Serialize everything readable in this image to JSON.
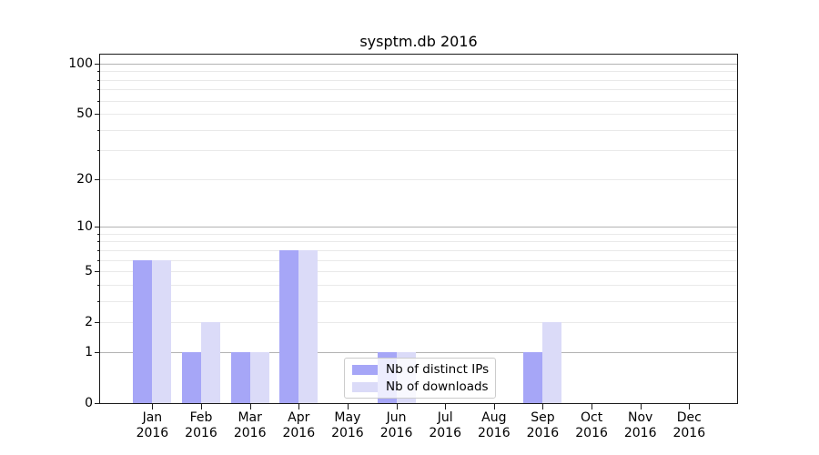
{
  "title": "sysptm.db 2016",
  "chart_data": {
    "type": "bar",
    "title": "sysptm.db 2016",
    "categories": [
      "Jan 2016",
      "Feb 2016",
      "Mar 2016",
      "Apr 2016",
      "May 2016",
      "Jun 2016",
      "Jul 2016",
      "Aug 2016",
      "Sep 2016",
      "Oct 2016",
      "Nov 2016",
      "Dec 2016"
    ],
    "series": [
      {
        "name": "Nb of distinct IPs",
        "color": "#a6a6f7",
        "values": [
          6,
          1,
          1,
          7,
          0,
          1,
          0,
          0,
          1,
          0,
          0,
          0
        ]
      },
      {
        "name": "Nb of downloads",
        "color": "#dbdbf8",
        "values": [
          6,
          2,
          1,
          7,
          0,
          1,
          0,
          0,
          2,
          0,
          0,
          0
        ]
      }
    ],
    "yscale": "log1p",
    "ylim": [
      0,
      113
    ],
    "y_ticks": [
      0,
      1,
      2,
      5,
      10,
      20,
      50,
      100
    ],
    "y_major_gridlines": [
      1,
      10,
      100
    ],
    "y_minor_gridlines": [
      2,
      3,
      4,
      5,
      6,
      7,
      8,
      9,
      20,
      30,
      40,
      50,
      60,
      70,
      80,
      90
    ],
    "grid": true,
    "legend_position": "lower center"
  },
  "legend": {
    "items": [
      "Nb of distinct IPs",
      "Nb of downloads"
    ]
  },
  "colors": {
    "grid_major": "#b3b3b3",
    "grid_minor": "#e9e9e9",
    "spine": "#1a1a1a",
    "text": "#000000"
  }
}
